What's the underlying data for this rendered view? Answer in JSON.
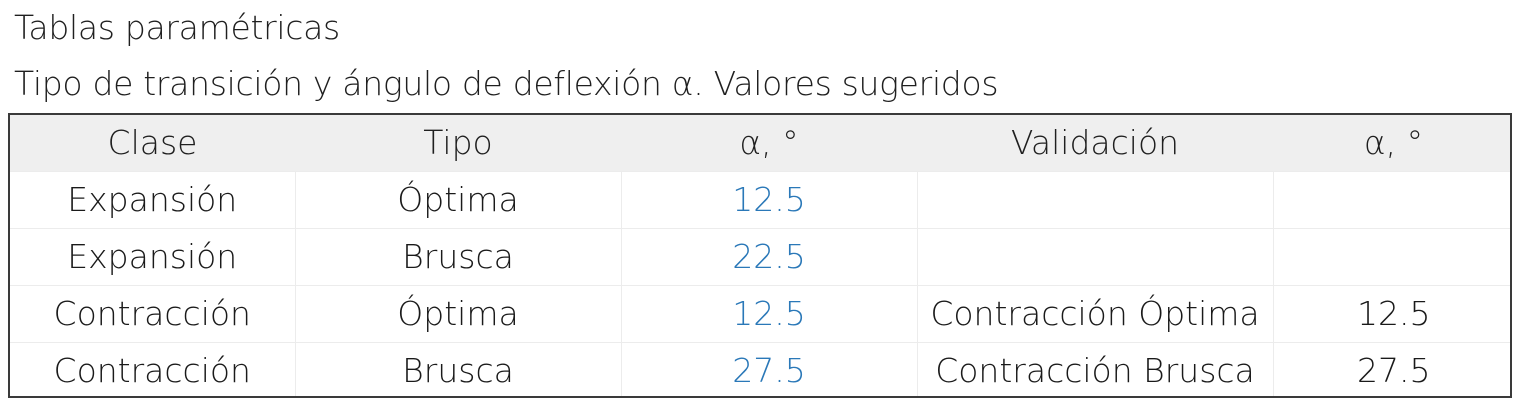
{
  "title": "Tablas paramétricas",
  "subtitle": "Tipo de transición y ángulo de deflexión α. Valores sugeridos",
  "table": {
    "headers": [
      "Clase",
      "Tipo",
      "α, °",
      "Validación",
      "α, °"
    ],
    "rows": [
      [
        "Expansión",
        "Óptima",
        "12.5",
        "",
        ""
      ],
      [
        "Expansión",
        "Brusca",
        "22.5",
        "",
        ""
      ],
      [
        "Contracción",
        "Óptima",
        "12.5",
        "Contracción Óptima",
        "12.5"
      ],
      [
        "Contracción",
        "Brusca",
        "27.5",
        "Contracción Brusca",
        "27.5"
      ]
    ]
  },
  "colors": {
    "value_text": "#2a78b8",
    "header_background": "#efefef"
  }
}
